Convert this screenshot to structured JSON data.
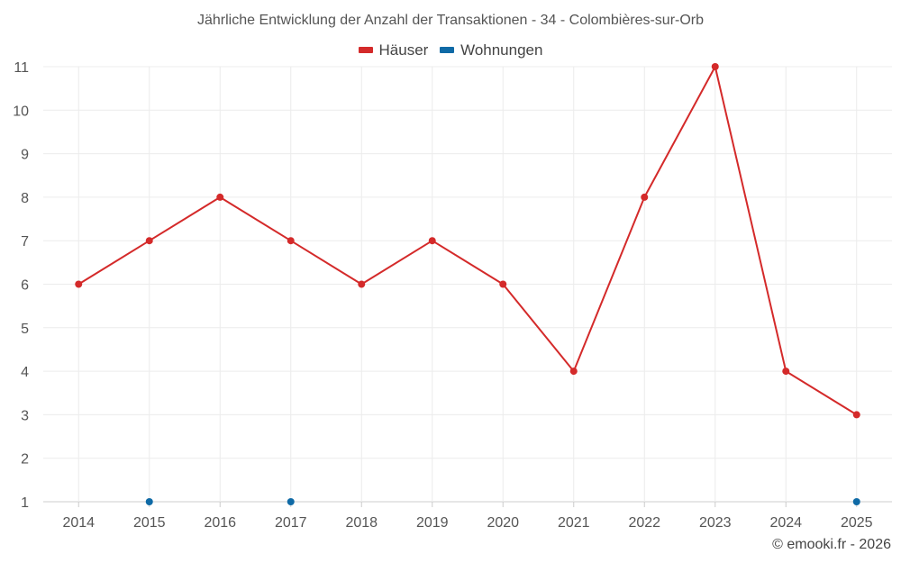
{
  "chart_data": {
    "type": "line",
    "title": "Jährliche Entwicklung der Anzahl der Transaktionen - 34 - Colombières-sur-Orb",
    "categories": [
      "2014",
      "2015",
      "2016",
      "2017",
      "2018",
      "2019",
      "2020",
      "2021",
      "2022",
      "2023",
      "2024",
      "2025"
    ],
    "series": [
      {
        "name": "Häuser",
        "color": "#d42a2a",
        "line": true,
        "values": [
          6,
          7,
          8,
          7,
          6,
          7,
          6,
          4,
          8,
          11,
          4,
          3
        ]
      },
      {
        "name": "Wohnungen",
        "color": "#0f6aa6",
        "line": false,
        "values": [
          null,
          1,
          null,
          1,
          null,
          null,
          null,
          null,
          null,
          null,
          null,
          1
        ]
      }
    ],
    "yticks": [
      1,
      2,
      3,
      4,
      5,
      6,
      7,
      8,
      9,
      10,
      11
    ],
    "ylim": [
      1,
      11
    ],
    "xlabel": "",
    "ylabel": "",
    "grid": true,
    "legend_position": "top-center"
  },
  "credits": "© emooki.fr - 2026"
}
